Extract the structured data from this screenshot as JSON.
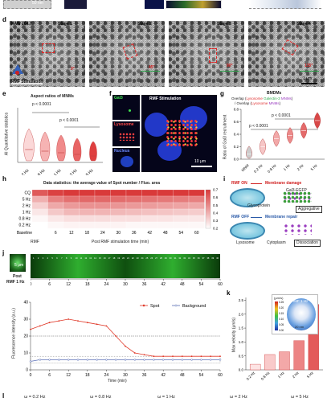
{
  "top": {
    "scalebar_50nm": "50 nm"
  },
  "panel_d": {
    "label": "d",
    "stages": [
      {
        "title": "RAW 264.7",
        "stage": "Stage 1",
        "angle": "0°"
      },
      {
        "title": "",
        "stage": "Stage 2",
        "angle": "45°"
      },
      {
        "title": "",
        "stage": "Stage 3",
        "angle": "90°"
      },
      {
        "title": "",
        "stage": "Stage 4",
        "angle": "135°"
      }
    ],
    "rmf_label": "RMF Stimulation",
    "scalebar": "1 μm"
  },
  "panel_e": {
    "label": "e",
    "title": "Aspect ratios of MNMs",
    "ylabel": "AI Quantitative statistics",
    "p_values": [
      "p < 0.0001",
      "p < 0.0001"
    ],
    "colors": [
      "#fbd8d8",
      "#f6b3b3",
      "#f08a8a",
      "#e86464",
      "#df3f3f"
    ]
  },
  "panel_f": {
    "label": "f",
    "channels": [
      "Gal3",
      "Lysosome",
      "Nucleus"
    ],
    "overlay_label": "RMF Stimulation",
    "scalebar": "10 μm"
  },
  "panel_g": {
    "label": "g",
    "title": "BMDMs",
    "subtitle_parts": [
      "Overlap (",
      "Lysosome",
      "Galectin-3",
      "MNMs",
      ")"
    ],
    "subtitle_line2_parts": [
      "/ Overlap (",
      "Lysosome",
      "MNMs",
      ")"
    ],
    "ylabel": "Ratio of Gal3 recruitment",
    "p_values": [
      "p < 0.0001",
      "p < 0.0001"
    ]
  },
  "panel_h": {
    "label": "h",
    "title": "Data statistics: the average value of Spot number / Fluo. area",
    "colorbar_ticks": [
      "0.7",
      "0.6",
      "0.5",
      "0.4",
      "0.3",
      "0.2"
    ],
    "rmf_label": "RMF",
    "xlabel": "Post RMF stimulation time (min)",
    "colors": {
      "low": "#ffffff",
      "high": "#d93a3a"
    }
  },
  "panel_i": {
    "label": "i",
    "rmf_on": "RMF ON",
    "rmf_off": "RMF OFF",
    "membrane_damage": "Membrane damage",
    "membrane_repair": "Membrane repair",
    "gal3_egfp": "Gal3-EGFP",
    "glycoprotein": "Glycoprotein",
    "aggregative": "Aggregative",
    "lysosome": "Lysosome",
    "cytoplasm": "Cytoplasm",
    "dissociation": "Dissociation"
  },
  "panel_j": {
    "label": "j",
    "post_label": "Post",
    "rmf_label": "RMF 1 Hz",
    "scalebar": "5 μm",
    "frame_numbers": [
      "1",
      "2",
      "3",
      "4",
      "5",
      "6",
      "7",
      "8",
      "9",
      "10",
      "11",
      "12",
      "13",
      "14",
      "15",
      "16",
      "17",
      "18",
      "19",
      "20",
      "21",
      "22",
      "23",
      "24",
      "25",
      "26",
      "27",
      "28",
      "29",
      "30",
      "31",
      "32",
      "33",
      "34",
      "35",
      "36",
      "37",
      "38",
      "39",
      "40"
    ],
    "xticks_top": [
      "0",
      "6",
      "12",
      "18",
      "24",
      "30",
      "36",
      "42",
      "48",
      "54",
      "60"
    ],
    "legend": [
      "Spot",
      "Background"
    ],
    "ylabel": "Fluorescence intensity (a.u.)",
    "xlabel": "Time (min)",
    "colors": {
      "spot": "#e03a2a",
      "background": "#5a6fb5"
    }
  },
  "panel_k": {
    "label": "k",
    "ylabel": "Max velocity (μm/s)",
    "inset_unit": "(μm/s)",
    "inset_ticks": [
      "0.25",
      "0.20",
      "0.15",
      "0.10",
      "0.05",
      "0.00"
    ],
    "inset_label": "RMF 1 Hz",
    "inset_scalebar": "20 nm"
  },
  "bottom_labels": {
    "label": "l",
    "items": [
      "ω = 0.2 Hz",
      "ω = 0.8 Hz",
      "ω = 1 Hz",
      "ω = 2 Hz",
      "ω = 5 Hz"
    ]
  },
  "chart_data": [
    {
      "type": "violin",
      "panel": "e",
      "title": "Aspect ratios of MNMs",
      "categories": [
        "0.2 Hz",
        "0.8 Hz",
        "1 Hz",
        "2 Hz",
        "5 Hz"
      ],
      "ylabel": "AI Quantitative statistics",
      "annotations": [
        "p < 0.0001",
        "p < 0.0001"
      ]
    },
    {
      "type": "violin",
      "panel": "g",
      "title": "BMDMs",
      "categories": [
        "MNM",
        "0.2 Hz",
        "0.8 Hz",
        "1 Hz",
        "2 Hz",
        "5 Hz"
      ],
      "yticks": [
        0.0,
        0.2,
        0.4,
        0.6,
        0.8
      ],
      "ylim": [
        0,
        0.8
      ],
      "medians": [
        0.08,
        0.2,
        0.33,
        0.38,
        0.46,
        0.62
      ],
      "ylabel": "Ratio of Gal3 recruitment",
      "annotations": [
        "p < 0.0001",
        "p < 0.0001"
      ]
    },
    {
      "type": "heatmap",
      "panel": "h",
      "title": "Data statistics: the average value of Spot number / Fluo. area",
      "rows": [
        "CQ",
        "5 Hz",
        "2 Hz",
        "1 Hz",
        "0.8 Hz",
        "0.2 Hz"
      ],
      "x": [
        "Baseline",
        "6",
        "12",
        "18",
        "24",
        "30",
        "36",
        "42",
        "48",
        "54",
        "60"
      ],
      "xlabel": "Post RMF stimulation time (min)",
      "values": [
        [
          0.62,
          0.68,
          0.7,
          0.71,
          0.72,
          0.72,
          0.72,
          0.72,
          0.72,
          0.72,
          0.72
        ],
        [
          0.4,
          0.52,
          0.56,
          0.58,
          0.58,
          0.57,
          0.56,
          0.55,
          0.54,
          0.53,
          0.52
        ],
        [
          0.32,
          0.42,
          0.46,
          0.48,
          0.48,
          0.47,
          0.46,
          0.45,
          0.44,
          0.43,
          0.42
        ],
        [
          0.26,
          0.34,
          0.38,
          0.39,
          0.39,
          0.38,
          0.37,
          0.36,
          0.35,
          0.34,
          0.33
        ],
        [
          0.22,
          0.26,
          0.28,
          0.29,
          0.29,
          0.28,
          0.28,
          0.27,
          0.27,
          0.26,
          0.26
        ],
        [
          0.2,
          0.22,
          0.23,
          0.23,
          0.23,
          0.23,
          0.22,
          0.22,
          0.22,
          0.22,
          0.22
        ]
      ],
      "colorbar_range": [
        0.2,
        0.7
      ]
    },
    {
      "type": "line",
      "panel": "j",
      "xlabel": "Time (min)",
      "ylabel": "Fluorescence intensity (a.u.)",
      "x": [
        0,
        3,
        6,
        9,
        12,
        15,
        18,
        21,
        24,
        27,
        30,
        33,
        36,
        39,
        42,
        45,
        48,
        51,
        54,
        57,
        60
      ],
      "xticks": [
        0,
        6,
        12,
        18,
        24,
        30,
        36,
        42,
        48,
        54,
        60
      ],
      "yticks": [
        0,
        10,
        20,
        30,
        40
      ],
      "ylim": [
        0,
        40
      ],
      "series": [
        {
          "name": "Spot",
          "values": [
            24,
            26,
            28,
            29,
            30,
            29,
            28,
            27,
            26,
            20,
            14,
            10,
            9,
            8,
            8,
            8,
            8,
            8,
            8,
            8,
            8
          ]
        },
        {
          "name": "Background",
          "values": [
            5,
            6,
            6,
            6,
            6,
            6,
            6,
            6,
            6,
            6,
            6,
            6,
            6,
            6,
            6,
            6,
            6,
            6,
            6,
            6,
            6
          ]
        }
      ]
    },
    {
      "type": "bar",
      "panel": "k",
      "categories": [
        "0.2 Hz",
        "0.8 Hz",
        "1 Hz",
        "2 Hz",
        "5 Hz"
      ],
      "values": [
        0.2,
        0.55,
        0.65,
        1.05,
        2.35
      ],
      "yticks": [
        0.0,
        0.5,
        1.0,
        1.5,
        2.0,
        2.5
      ],
      "ylim": [
        0,
        2.6
      ],
      "ylabel": "Max velocity (μm/s)"
    }
  ]
}
